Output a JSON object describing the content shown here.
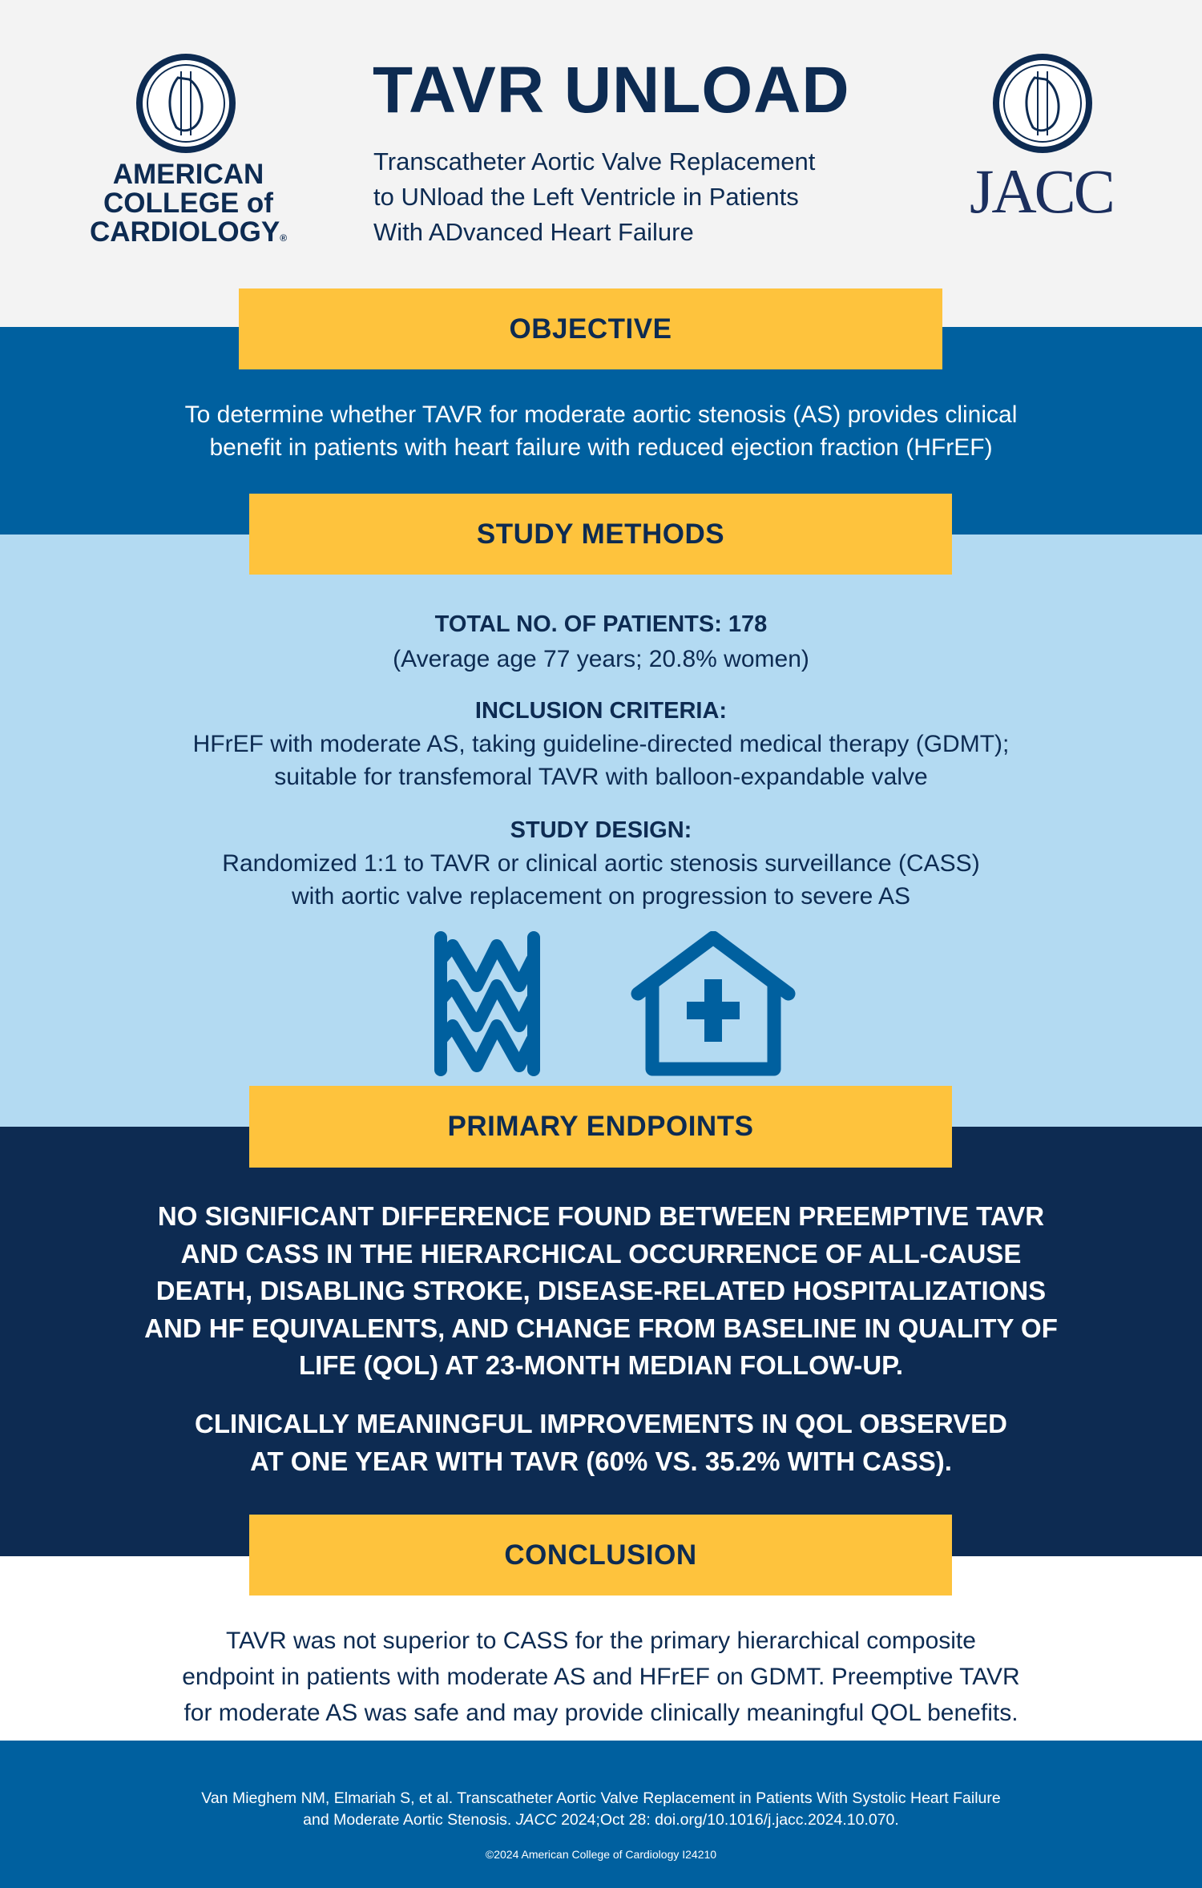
{
  "header": {
    "acc_logo": {
      "lines": [
        "AMERICAN",
        "COLLEGE of",
        "CARDIOLOGY"
      ],
      "mark": "®"
    },
    "title": "TAVR UNLOAD",
    "subtitle_lines": [
      "Transcatheter Aortic Valve Replacement",
      "to UNload the Left Ventricle in Patients",
      "With ADvanced Heart Failure"
    ],
    "jacc_logo": "JACC"
  },
  "objective": {
    "label": "OBJECTIVE",
    "lines": [
      "To determine whether TAVR for moderate aortic stenosis (AS) provides clinical",
      "benefit in patients with heart failure with reduced ejection fraction (HFrEF)"
    ]
  },
  "methods": {
    "label": "STUDY METHODS",
    "patients_heading": "TOTAL NO. OF PATIENTS: 178",
    "patients_detail": "(Average age 77 years; 20.8% women)",
    "inclusion_heading": "INCLUSION CRITERIA:",
    "inclusion_lines": [
      "HFrEF with moderate AS, taking guideline-directed medical therapy (GDMT);",
      "suitable for transfemoral TAVR with balloon-expandable valve"
    ],
    "design_heading": "STUDY DESIGN:",
    "design_lines": [
      "Randomized 1:1 to TAVR or clinical aortic stenosis surveillance (CASS)",
      "with aortic valve replacement on progression to severe AS"
    ],
    "icons": [
      "tavr-valve-icon",
      "hospital-house-icon"
    ]
  },
  "endpoints": {
    "label": "PRIMARY ENDPOINTS",
    "para1": [
      "NO SIGNIFICANT DIFFERENCE FOUND BETWEEN PREEMPTIVE TAVR",
      "AND CASS IN THE HIERARCHICAL OCCURRENCE OF ALL-CAUSE",
      "DEATH, DISABLING STROKE, DISEASE-RELATED HOSPITALIZATIONS",
      "AND HF EQUIVALENTS, AND CHANGE FROM BASELINE IN QUALITY OF",
      "LIFE (QOL) AT 23-MONTH MEDIAN FOLLOW-UP."
    ],
    "para2": [
      "CLINICALLY MEANINGFUL IMPROVEMENTS IN QOL OBSERVED",
      "AT ONE YEAR WITH TAVR (60% VS. 35.2% WITH CASS)."
    ]
  },
  "conclusion": {
    "label": "CONCLUSION",
    "lines": [
      "TAVR was not superior to CASS for the primary hierarchical composite",
      "endpoint in patients with moderate AS and HFrEF on GDMT. Preemptive TAVR",
      "for moderate AS was safe and may provide clinically meaningful QOL benefits."
    ]
  },
  "footer": {
    "citation_line1": "Van Mieghem NM, Elmariah S, et al. Transcatheter Aortic Valve Replacement in Patients With Systolic Heart Failure",
    "citation_line2_pre": "and Moderate Aortic Stenosis. ",
    "citation_journal": "JACC",
    "citation_line2_post": " 2024;Oct 28: doi.org/10.1016/j.jacc.2024.10.070.",
    "copyright": "©2024 American College of Cardiology I24210"
  },
  "colors": {
    "navy": "#0d2b52",
    "blue": "#00609f",
    "light_blue": "#b3daf2",
    "yellow": "#fec33d",
    "header_bg": "#f3f3f3"
  }
}
